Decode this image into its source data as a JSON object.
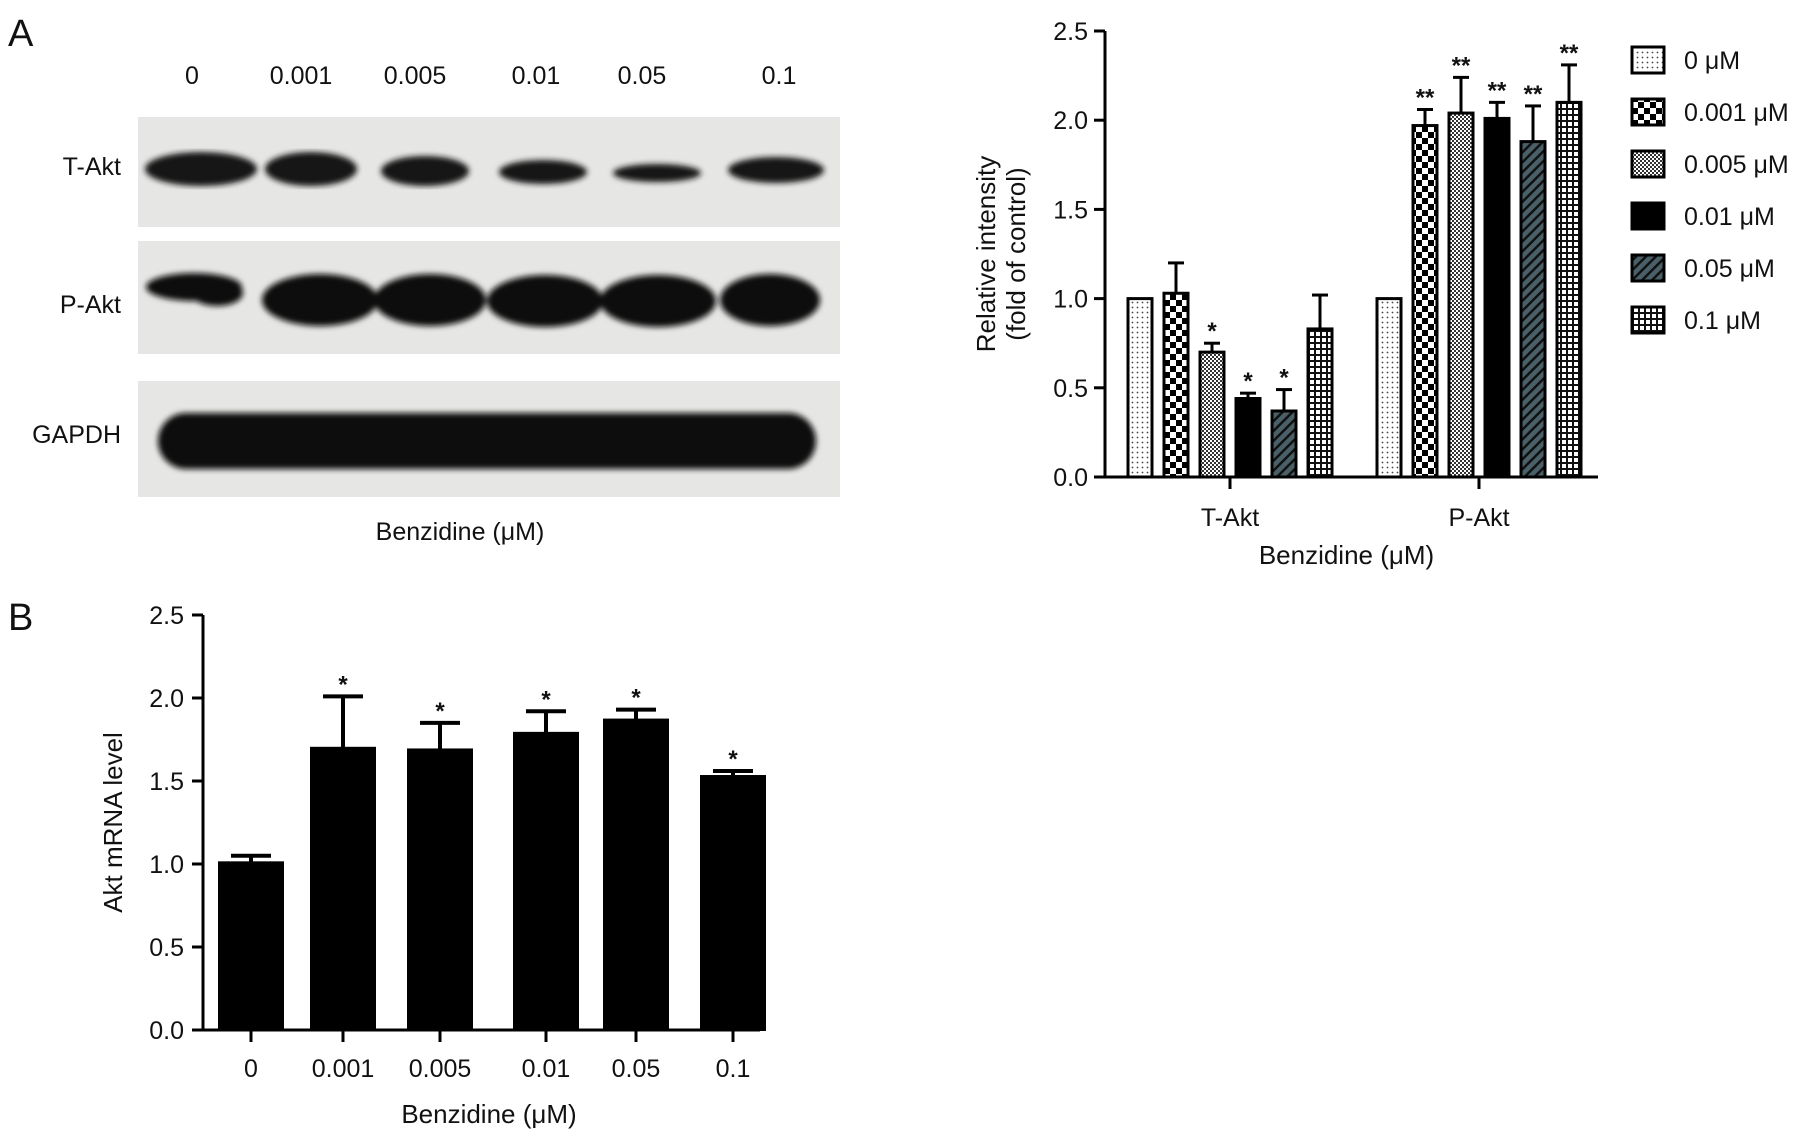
{
  "panel_a": {
    "letter": "A",
    "blot": {
      "doses": [
        "0",
        "0.001",
        "0.005",
        "0.01",
        "0.05",
        "0.1"
      ],
      "rows": [
        "T-Akt",
        "P-Akt",
        "GAPDH"
      ],
      "xlabel": "Benzidine (μM)"
    }
  },
  "panel_b": {
    "letter": "B"
  },
  "chart_data": [
    {
      "type": "bar",
      "title": "",
      "categories": [
        "T-Akt",
        "P-Akt"
      ],
      "series": [
        {
          "name": "0 μM",
          "values": [
            1.0,
            1.0
          ],
          "errors": [
            0,
            0
          ],
          "sig": [
            "",
            ""
          ],
          "pattern": "dots"
        },
        {
          "name": "0.001 μM",
          "values": [
            1.03,
            1.97
          ],
          "errors": [
            0.17,
            0.09
          ],
          "sig": [
            "",
            "**"
          ],
          "pattern": "checker"
        },
        {
          "name": "0.005 μM",
          "values": [
            0.7,
            2.04
          ],
          "errors": [
            0.05,
            0.2
          ],
          "sig": [
            "*",
            "**"
          ],
          "pattern": "fine"
        },
        {
          "name": "0.01 μM",
          "values": [
            0.44,
            2.01
          ],
          "errors": [
            0.03,
            0.09
          ],
          "sig": [
            "*",
            "**"
          ],
          "pattern": "solid"
        },
        {
          "name": "0.05 μM",
          "values": [
            0.37,
            1.88
          ],
          "errors": [
            0.12,
            0.2
          ],
          "sig": [
            "*",
            "**"
          ],
          "pattern": "diagonal"
        },
        {
          "name": "0.1 μM",
          "values": [
            0.83,
            2.1
          ],
          "errors": [
            0.19,
            0.21
          ],
          "sig": [
            "",
            "**"
          ],
          "pattern": "grid"
        }
      ],
      "xlabel": "Benzidine (μM)",
      "ylabel": "Relative intensity",
      "ylabel2": "(fold of control)",
      "ylim": [
        0,
        2.5
      ],
      "yticks": [
        "0.0",
        "0.5",
        "1.0",
        "1.5",
        "2.0",
        "2.5"
      ],
      "legend": "right",
      "grid": false
    },
    {
      "type": "bar",
      "title": "",
      "categories": [
        "0",
        "0.001",
        "0.005",
        "0.01",
        "0.05",
        "0.1"
      ],
      "values": [
        1.01,
        1.7,
        1.69,
        1.79,
        1.87,
        1.53
      ],
      "errors": [
        0.04,
        0.31,
        0.16,
        0.13,
        0.06,
        0.03
      ],
      "sig": [
        "",
        "*",
        "*",
        "*",
        "*",
        "*"
      ],
      "xlabel": "Benzidine (μM)",
      "ylabel": "Akt mRNA level",
      "ylim": [
        0,
        2.5
      ],
      "yticks": [
        "0.0",
        "0.5",
        "1.0",
        "1.5",
        "2.0",
        "2.5"
      ],
      "color": "#000000",
      "grid": false
    }
  ]
}
